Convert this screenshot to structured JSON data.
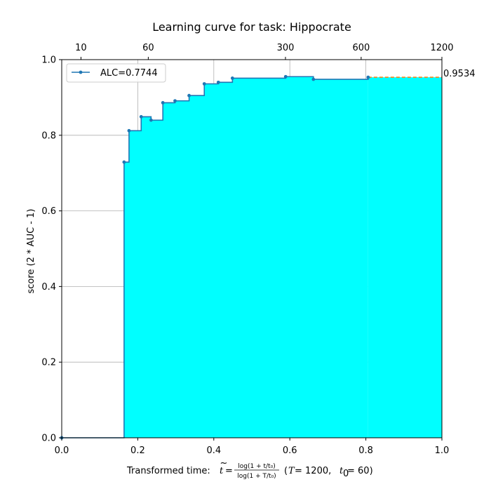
{
  "chart_data": {
    "type": "line",
    "title": "Learning curve for task: Hippocrate",
    "ylabel": "score (2 * AUC - 1)",
    "xlabel": {
      "prefix": "Transformed time: ",
      "t_var": "t",
      "equals": "=",
      "numerator": "log(1 + t/t₀)",
      "denominator": "log(1 + T/t₀)",
      "params_open": "(",
      "T_var": "T",
      "T_eq": " = 1200,",
      "t0_var": "t",
      "t0_sub": "0",
      "t0_eq": " = 60)"
    },
    "xlim": [
      0,
      1
    ],
    "ylim": [
      0,
      1
    ],
    "x_ticks": [
      0.0,
      0.2,
      0.4,
      0.6,
      0.8,
      1.0
    ],
    "x_tick_labels": [
      "0.0",
      "0.2",
      "0.4",
      "0.6",
      "0.8",
      "1.0"
    ],
    "y_ticks": [
      0.0,
      0.2,
      0.4,
      0.6,
      0.8,
      1.0
    ],
    "y_tick_labels": [
      "0.0",
      "0.2",
      "0.4",
      "0.6",
      "0.8",
      "1.0"
    ],
    "top_ticks": [
      10,
      60,
      300,
      600,
      1200
    ],
    "top_tick_labels": [
      "10",
      "60",
      "300",
      "600",
      "1200"
    ],
    "T": 1200,
    "t0": 60,
    "grid": true,
    "legend": {
      "label": "ALC=0.7744",
      "placement": "top-left"
    },
    "final_score_label": "0.9534",
    "step_points": [
      {
        "x": 0.0,
        "y": 0.0
      },
      {
        "x": 0.164,
        "y": 0.729
      },
      {
        "x": 0.177,
        "y": 0.812
      },
      {
        "x": 0.209,
        "y": 0.849
      },
      {
        "x": 0.235,
        "y": 0.84
      },
      {
        "x": 0.266,
        "y": 0.886
      },
      {
        "x": 0.298,
        "y": 0.891
      },
      {
        "x": 0.335,
        "y": 0.905
      },
      {
        "x": 0.375,
        "y": 0.936
      },
      {
        "x": 0.412,
        "y": 0.94
      },
      {
        "x": 0.449,
        "y": 0.951
      },
      {
        "x": 0.589,
        "y": 0.955
      },
      {
        "x": 0.662,
        "y": 0.948
      },
      {
        "x": 0.806,
        "y": 0.9534
      }
    ],
    "colors": {
      "line": "#1f77b4",
      "fill": "#00ffff",
      "extension": "#ff7f0e",
      "grid": "#b0b0b0"
    }
  }
}
